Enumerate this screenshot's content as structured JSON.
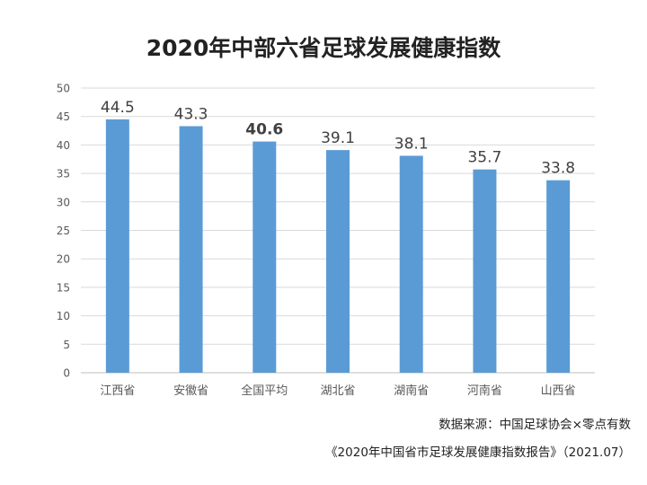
{
  "chart_data": {
    "type": "bar",
    "title": "2020年中部六省足球发展健康指数",
    "categories": [
      "江西省",
      "安徽省",
      "全国平均",
      "湖北省",
      "湖南省",
      "河南省",
      "山西省"
    ],
    "values": [
      44.5,
      43.3,
      40.6,
      39.1,
      38.1,
      35.7,
      33.8
    ],
    "value_labels": [
      "44.5",
      "43.3",
      "40.6",
      "39.1",
      "38.1",
      "35.7",
      "33.8"
    ],
    "highlight_category": "全国平均",
    "ylim": [
      0,
      50
    ],
    "yticks": [
      0,
      5,
      10,
      15,
      20,
      25,
      30,
      35,
      40,
      45,
      50
    ],
    "grid": true,
    "bar_color": "#5b9bd5",
    "grid_color": "#d9d9d9",
    "xlabel": "",
    "ylabel": ""
  },
  "sources": {
    "line1": "数据来源：中国足球协会×零点有数",
    "line2": "《2020年中国省市足球发展健康指数报告》（2021.07）"
  }
}
